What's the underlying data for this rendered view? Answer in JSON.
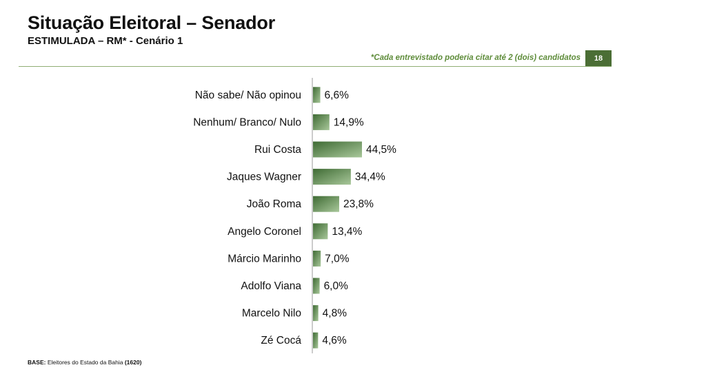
{
  "header": {
    "title": "Situação Eleitoral – Senador",
    "subtitle": "ESTIMULADA – RM* - Cenário 1",
    "note": "*Cada entrevistado poderia citar até 2 (dois) candidatos",
    "page_number": "18"
  },
  "footer": {
    "base_label": "BASE:",
    "base_text": "Eleitores do Estado da Bahia",
    "base_count": "(1620)"
  },
  "colors": {
    "bar": "#3f6b34",
    "bar_light": "#a8c79a",
    "accent": "#4b6e35"
  },
  "chart_data": {
    "type": "bar",
    "orientation": "horizontal",
    "categories": [
      "Não sabe/ Não opinou",
      "Nenhum/ Branco/ Nulo",
      "Rui Costa",
      "Jaques Wagner",
      "João Roma",
      "Angelo Coronel",
      "Márcio Marinho",
      "Adolfo Viana",
      "Marcelo Nilo",
      "Zé Cocá"
    ],
    "values": [
      6.6,
      14.9,
      44.5,
      34.4,
      23.8,
      13.4,
      7.0,
      6.0,
      4.8,
      4.6
    ],
    "value_labels": [
      "6,6%",
      "14,9%",
      "44,5%",
      "34,4%",
      "23,8%",
      "13,4%",
      "7,0%",
      "6,0%",
      "4,8%",
      "4,6%"
    ],
    "unit": "%",
    "grid": false,
    "legend": "none"
  }
}
